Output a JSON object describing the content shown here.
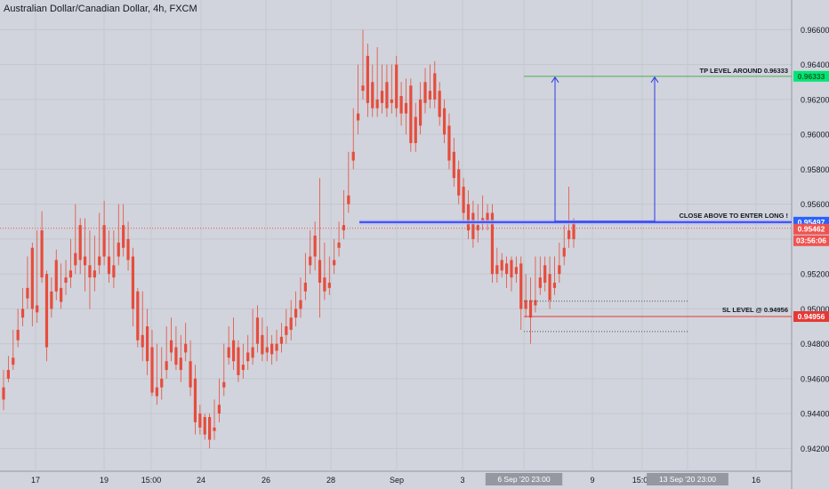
{
  "header": {
    "title": "Australian Dollar/Canadian Dollar, 4h, FXCM"
  },
  "chart_data": {
    "type": "candlestick",
    "symbol": "AUD/CAD",
    "timeframe": "4h",
    "broker": "FXCM",
    "y_axis": {
      "range": [
        0.941,
        0.9675
      ],
      "ticks": [
        "0.96600",
        "0.96400",
        "0.96200",
        "0.96000",
        "0.95800",
        "0.95600",
        "0.95400",
        "0.95200",
        "0.95000",
        "0.94800",
        "0.94600",
        "0.94400",
        "0.94200"
      ]
    },
    "x_axis": {
      "ticks": [
        "17",
        "19",
        "15:00",
        "24",
        "26",
        "28",
        "Sep",
        "3",
        "6 Sep '20  23:00",
        "9",
        "15:00",
        "13 Sep '20  23:00",
        "16"
      ]
    },
    "candles": [
      [
        0.9455,
        0.9465,
        0.9448,
        0.9442
      ],
      [
        0.9465,
        0.9473,
        0.946,
        0.9458
      ],
      [
        0.9472,
        0.9488,
        0.9468,
        0.9465
      ],
      [
        0.9488,
        0.95,
        0.9482,
        0.9478
      ],
      [
        0.95,
        0.9512,
        0.9495,
        0.949
      ],
      [
        0.9512,
        0.953,
        0.9506,
        0.95
      ],
      [
        0.9535,
        0.9538,
        0.95,
        0.949
      ],
      [
        0.9502,
        0.9545,
        0.9498,
        0.9492
      ],
      [
        0.9545,
        0.9556,
        0.9518,
        0.9515
      ],
      [
        0.952,
        0.9522,
        0.9478,
        0.947
      ],
      [
        0.951,
        0.9518,
        0.95,
        0.9495
      ],
      [
        0.9528,
        0.9534,
        0.951,
        0.9505
      ],
      [
        0.9512,
        0.9526,
        0.9504,
        0.95
      ],
      [
        0.9518,
        0.9528,
        0.9515,
        0.9508
      ],
      [
        0.9522,
        0.954,
        0.9518,
        0.9512
      ],
      [
        0.9532,
        0.956,
        0.9525,
        0.952
      ],
      [
        0.9548,
        0.9552,
        0.9528,
        0.952
      ],
      [
        0.953,
        0.9552,
        0.9525,
        0.951
      ],
      [
        0.9525,
        0.9545,
        0.9518,
        0.95
      ],
      [
        0.9522,
        0.9542,
        0.9518,
        0.951
      ],
      [
        0.953,
        0.9555,
        0.9525,
        0.952
      ],
      [
        0.9548,
        0.9562,
        0.953,
        0.9525
      ],
      [
        0.953,
        0.9545,
        0.952,
        0.9515
      ],
      [
        0.9525,
        0.9545,
        0.9518,
        0.9512
      ],
      [
        0.9538,
        0.956,
        0.953,
        0.9525
      ],
      [
        0.9548,
        0.956,
        0.9535,
        0.953
      ],
      [
        0.954,
        0.955,
        0.9528,
        0.9522
      ],
      [
        0.953,
        0.9535,
        0.95,
        0.949
      ],
      [
        0.951,
        0.9512,
        0.9482,
        0.9478
      ],
      [
        0.9485,
        0.951,
        0.9478,
        0.947
      ],
      [
        0.949,
        0.95,
        0.947,
        0.9462
      ],
      [
        0.9478,
        0.9488,
        0.9452,
        0.945
      ],
      [
        0.9455,
        0.948,
        0.945,
        0.9445
      ],
      [
        0.946,
        0.9478,
        0.9455,
        0.9448
      ],
      [
        0.947,
        0.949,
        0.9465,
        0.946
      ],
      [
        0.9482,
        0.9495,
        0.9475,
        0.947
      ],
      [
        0.9478,
        0.949,
        0.9468,
        0.9465
      ],
      [
        0.9472,
        0.9485,
        0.9465,
        0.9458
      ],
      [
        0.948,
        0.9492,
        0.9475,
        0.947
      ],
      [
        0.947,
        0.9482,
        0.9455,
        0.945
      ],
      [
        0.946,
        0.9468,
        0.9435,
        0.9428
      ],
      [
        0.944,
        0.9445,
        0.9432,
        0.9428
      ],
      [
        0.9438,
        0.944,
        0.9428,
        0.9425
      ],
      [
        0.9438,
        0.944,
        0.9425,
        0.942
      ],
      [
        0.9432,
        0.9448,
        0.943,
        0.9425
      ],
      [
        0.9445,
        0.946,
        0.944,
        0.9435
      ],
      [
        0.9458,
        0.948,
        0.9455,
        0.945
      ],
      [
        0.9478,
        0.949,
        0.9472,
        0.9468
      ],
      [
        0.9482,
        0.9495,
        0.947,
        0.9465
      ],
      [
        0.9478,
        0.9482,
        0.9462,
        0.9458
      ],
      [
        0.9468,
        0.948,
        0.9465,
        0.946
      ],
      [
        0.9475,
        0.9485,
        0.947,
        0.9465
      ],
      [
        0.9478,
        0.95,
        0.9472,
        0.9468
      ],
      [
        0.9495,
        0.9502,
        0.948,
        0.9475
      ],
      [
        0.9485,
        0.9495,
        0.9474,
        0.947
      ],
      [
        0.9478,
        0.949,
        0.9475,
        0.947
      ],
      [
        0.948,
        0.9485,
        0.9474,
        0.9468
      ],
      [
        0.948,
        0.9488,
        0.9476,
        0.947
      ],
      [
        0.9484,
        0.9492,
        0.948,
        0.9475
      ],
      [
        0.949,
        0.95,
        0.9485,
        0.948
      ],
      [
        0.9495,
        0.9505,
        0.9488,
        0.9482
      ],
      [
        0.95,
        0.951,
        0.9495,
        0.949
      ],
      [
        0.9505,
        0.9518,
        0.95,
        0.9495
      ],
      [
        0.9515,
        0.9532,
        0.951,
        0.9505
      ],
      [
        0.953,
        0.9545,
        0.9525,
        0.952
      ],
      [
        0.9542,
        0.955,
        0.953,
        0.9522
      ],
      [
        0.9528,
        0.9575,
        0.9515,
        0.9495
      ],
      [
        0.9518,
        0.9538,
        0.951,
        0.9505
      ],
      [
        0.9515,
        0.953,
        0.9512,
        0.9508
      ],
      [
        0.9528,
        0.954,
        0.9525,
        0.952
      ],
      [
        0.9538,
        0.955,
        0.9535,
        0.953
      ],
      [
        0.9548,
        0.9568,
        0.9545,
        0.954
      ],
      [
        0.9565,
        0.959,
        0.956,
        0.9555
      ],
      [
        0.959,
        0.9615,
        0.9585,
        0.958
      ],
      [
        0.9612,
        0.964,
        0.9608,
        0.96
      ],
      [
        0.9628,
        0.966,
        0.9625,
        0.962
      ],
      [
        0.9645,
        0.9652,
        0.9618,
        0.961
      ],
      [
        0.963,
        0.964,
        0.9615,
        0.961
      ],
      [
        0.962,
        0.965,
        0.9615,
        0.961
      ],
      [
        0.9625,
        0.964,
        0.9618,
        0.9612
      ],
      [
        0.963,
        0.964,
        0.9615,
        0.961
      ],
      [
        0.962,
        0.964,
        0.9618,
        0.9612
      ],
      [
        0.964,
        0.9645,
        0.9615,
        0.961
      ],
      [
        0.9622,
        0.963,
        0.9612,
        0.9605
      ],
      [
        0.9618,
        0.9632,
        0.9612,
        0.96
      ],
      [
        0.9628,
        0.9632,
        0.9595,
        0.959
      ],
      [
        0.961,
        0.9618,
        0.9595,
        0.959
      ],
      [
        0.962,
        0.963,
        0.9605,
        0.96
      ],
      [
        0.963,
        0.9638,
        0.9618,
        0.9612
      ],
      [
        0.9625,
        0.964,
        0.962,
        0.9615
      ],
      [
        0.9635,
        0.9642,
        0.962,
        0.9615
      ],
      [
        0.9625,
        0.963,
        0.961,
        0.9605
      ],
      [
        0.9615,
        0.962,
        0.96,
        0.9595
      ],
      [
        0.9605,
        0.9612,
        0.9585,
        0.958
      ],
      [
        0.959,
        0.9598,
        0.9575,
        0.957
      ],
      [
        0.958,
        0.9585,
        0.9565,
        0.956
      ],
      [
        0.957,
        0.9575,
        0.9555,
        0.955
      ],
      [
        0.956,
        0.9568,
        0.9545,
        0.954
      ],
      [
        0.9555,
        0.9562,
        0.954,
        0.9535
      ],
      [
        0.9548,
        0.956,
        0.9545,
        0.9538
      ],
      [
        0.9552,
        0.9565,
        0.955,
        0.9545
      ],
      [
        0.9555,
        0.956,
        0.955,
        0.9545
      ],
      [
        0.9555,
        0.956,
        0.952,
        0.9515
      ],
      [
        0.9525,
        0.9535,
        0.952,
        0.9515
      ],
      [
        0.9528,
        0.9532,
        0.9522,
        0.9518
      ],
      [
        0.9526,
        0.953,
        0.952,
        0.9512
      ],
      [
        0.9528,
        0.953,
        0.9518,
        0.951
      ],
      [
        0.9524,
        0.953,
        0.952,
        0.9515
      ],
      [
        0.9526,
        0.953,
        0.95,
        0.9488
      ],
      [
        0.9505,
        0.952,
        0.95,
        0.9495
      ],
      [
        0.9505,
        0.9518,
        0.9495,
        0.948
      ],
      [
        0.9505,
        0.953,
        0.9502,
        0.9498
      ],
      [
        0.9518,
        0.953,
        0.9512,
        0.9508
      ],
      [
        0.9525,
        0.953,
        0.9515,
        0.951
      ],
      [
        0.952,
        0.953,
        0.9505,
        0.95
      ],
      [
        0.9515,
        0.953,
        0.9512,
        0.9508
      ],
      [
        0.9525,
        0.9538,
        0.952,
        0.9515
      ],
      [
        0.9535,
        0.9548,
        0.953,
        0.9525
      ],
      [
        0.9545,
        0.957,
        0.954,
        0.9535
      ],
      [
        0.955,
        0.9552,
        0.954,
        0.9535
      ]
    ],
    "levels": [
      {
        "name": "tp",
        "label": "TP LEVEL AROUND 0.96333",
        "price": 0.96333,
        "color": "#4caf50"
      },
      {
        "name": "entry",
        "label": "CLOSE ABOVE TO ENTER LONG !",
        "price": 0.95497,
        "color": "#3f4fe6"
      },
      {
        "name": "sl",
        "label": "SL LEVEL @ 0.94956",
        "price": 0.94956,
        "color": "#e53935"
      }
    ],
    "price_badges": [
      {
        "name": "tp",
        "text": "0.96333",
        "color": "#00e676",
        "text_color": "#1b5e20"
      },
      {
        "name": "entry",
        "text": "0.95497",
        "color": "#2962ff",
        "text_color": "#ffffff"
      },
      {
        "name": "current",
        "text": "0.95462",
        "color": "#ef5350",
        "text_color": "#ffffff"
      },
      {
        "name": "countdown",
        "text": "03:56:06",
        "color": "#ef5350",
        "text_color": "#ffffff"
      },
      {
        "name": "sl",
        "text": "0.94956",
        "color": "#e53935",
        "text_color": "#ffffff"
      }
    ],
    "current_price": 0.95462,
    "colors": {
      "up": "#333333",
      "down": "#e74c3c",
      "background": "#d1d4dc",
      "grid": "#c4c7ce",
      "arrow": "#2b3ae6"
    }
  }
}
